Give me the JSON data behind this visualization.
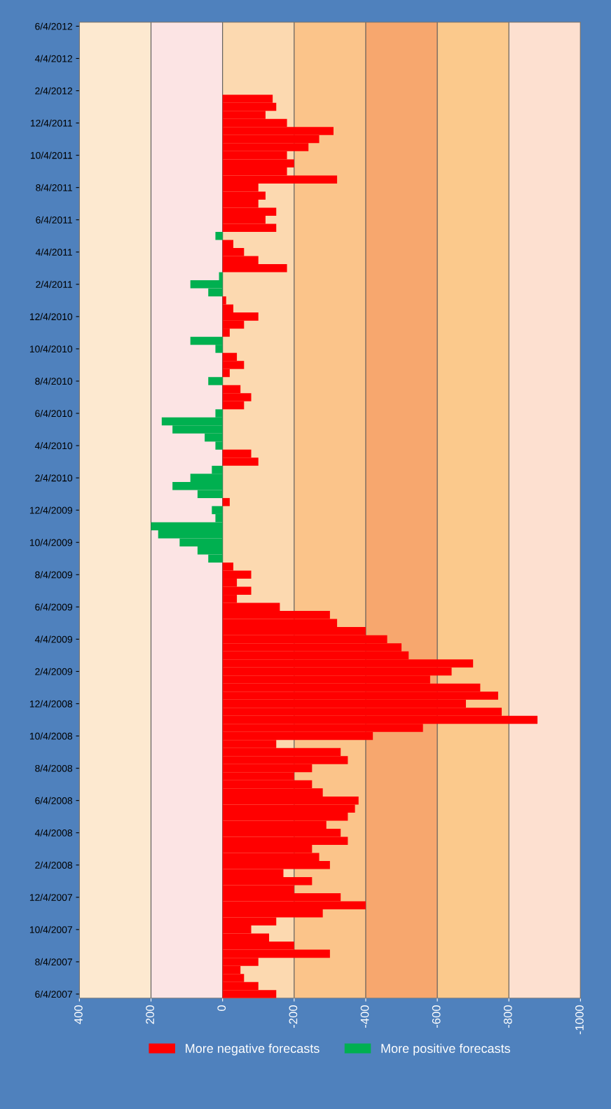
{
  "chart_data": {
    "type": "bar",
    "orientation": "horizontal",
    "categories": [
      "6/4/2012",
      null,
      null,
      null,
      "4/4/2012",
      null,
      null,
      null,
      "2/4/2012",
      null,
      null,
      null,
      "12/4/2011",
      null,
      null,
      null,
      "10/4/2011",
      null,
      null,
      null,
      "8/4/2011",
      null,
      null,
      null,
      "6/4/2011",
      null,
      null,
      null,
      "4/4/2011",
      null,
      null,
      null,
      "2/4/2011",
      null,
      null,
      null,
      "12/4/2010",
      null,
      null,
      null,
      "10/4/2010",
      null,
      null,
      null,
      "8/4/2010",
      null,
      null,
      null,
      "6/4/2010",
      null,
      null,
      null,
      "4/4/2010",
      null,
      null,
      null,
      "2/4/2010",
      null,
      null,
      null,
      "12/4/2009",
      null,
      null,
      null,
      "10/4/2009",
      null,
      null,
      null,
      "8/4/2009",
      null,
      null,
      null,
      "6/4/2009",
      null,
      null,
      null,
      "4/4/2009",
      null,
      null,
      null,
      "2/4/2009",
      null,
      null,
      null,
      "12/4/2008",
      null,
      null,
      null,
      "10/4/2008",
      null,
      null,
      null,
      "8/4/2008",
      null,
      null,
      null,
      "6/4/2008",
      null,
      null,
      null,
      "4/4/2008",
      null,
      null,
      null,
      "2/4/2008",
      null,
      null,
      null,
      "12/4/2007",
      null,
      null,
      null,
      "10/4/2007",
      null,
      null,
      null,
      "8/4/2007",
      null,
      null,
      null,
      "6/4/2007"
    ],
    "series": [
      {
        "name": "More negative forecasts",
        "color": "#ff0000",
        "values": [
          null,
          null,
          null,
          null,
          null,
          null,
          null,
          null,
          null,
          -140,
          -150,
          -120,
          -180,
          -310,
          -270,
          -240,
          -180,
          -200,
          -180,
          -320,
          -100,
          -120,
          -100,
          -150,
          -120,
          -150,
          null,
          -30,
          -60,
          -100,
          -180,
          null,
          null,
          null,
          -10,
          -30,
          -100,
          -60,
          -20,
          null,
          null,
          -40,
          -60,
          -20,
          null,
          -50,
          -80,
          -60,
          null,
          null,
          null,
          null,
          null,
          -80,
          -100,
          null,
          null,
          null,
          null,
          -20,
          null,
          null,
          null,
          null,
          null,
          null,
          null,
          -30,
          -80,
          -40,
          -80,
          -40,
          -160,
          -300,
          -320,
          -400,
          -460,
          -500,
          -520,
          -700,
          -640,
          -580,
          -720,
          -770,
          -680,
          -780,
          -880,
          -560,
          -420,
          -150,
          -330,
          -350,
          -250,
          -200,
          -250,
          -280,
          -380,
          -370,
          -350,
          -290,
          -330,
          -350,
          -250,
          -270,
          -300,
          -170,
          -250,
          -200,
          -330,
          -400,
          -280,
          -150,
          -80,
          -130,
          -200,
          -300,
          -100,
          -50,
          -60,
          -100,
          -150
        ]
      },
      {
        "name": "More positive forecasts",
        "color": "#00b050",
        "values": [
          null,
          null,
          null,
          null,
          null,
          null,
          null,
          null,
          null,
          null,
          null,
          null,
          null,
          null,
          null,
          null,
          null,
          null,
          null,
          null,
          null,
          null,
          null,
          null,
          null,
          null,
          20,
          null,
          null,
          null,
          null,
          10,
          90,
          40,
          null,
          null,
          null,
          null,
          null,
          90,
          20,
          null,
          null,
          null,
          40,
          null,
          null,
          null,
          20,
          170,
          140,
          50,
          20,
          null,
          null,
          30,
          90,
          140,
          70,
          null,
          30,
          20,
          200,
          180,
          120,
          70,
          40,
          null,
          null,
          null,
          null,
          null,
          null,
          null,
          null,
          null,
          null,
          null,
          null,
          null,
          null,
          null,
          null,
          null,
          null,
          null,
          null,
          null,
          null,
          null,
          null,
          null,
          null,
          null,
          null,
          null,
          null,
          null,
          null,
          null,
          null,
          null,
          null,
          null,
          null,
          null,
          null,
          null,
          null,
          null,
          null,
          null,
          null,
          null,
          null,
          null,
          null,
          null,
          null,
          null,
          null
        ]
      }
    ],
    "xlim": [
      400,
      -1000
    ],
    "xticks": [
      400,
      200,
      0,
      -200,
      -400,
      -600,
      -800,
      -1000
    ],
    "grid": "x",
    "legend": "bottom",
    "bands": [
      {
        "axis": "x",
        "from": 400,
        "to": 200,
        "color": "#fde9d0"
      },
      {
        "axis": "x",
        "from": 200,
        "to": 0,
        "color": "#fce4e4"
      },
      {
        "axis": "x",
        "from": 0,
        "to": -200,
        "color": "#fcd9b0"
      },
      {
        "axis": "x",
        "from": -200,
        "to": -400,
        "color": "#fbc48a"
      },
      {
        "axis": "x",
        "from": -400,
        "to": -600,
        "color": "#f7a76e"
      },
      {
        "axis": "x",
        "from": -600,
        "to": -800,
        "color": "#fbc98c"
      },
      {
        "axis": "x",
        "from": -800,
        "to": -1000,
        "color": "#fde0d0"
      }
    ]
  }
}
